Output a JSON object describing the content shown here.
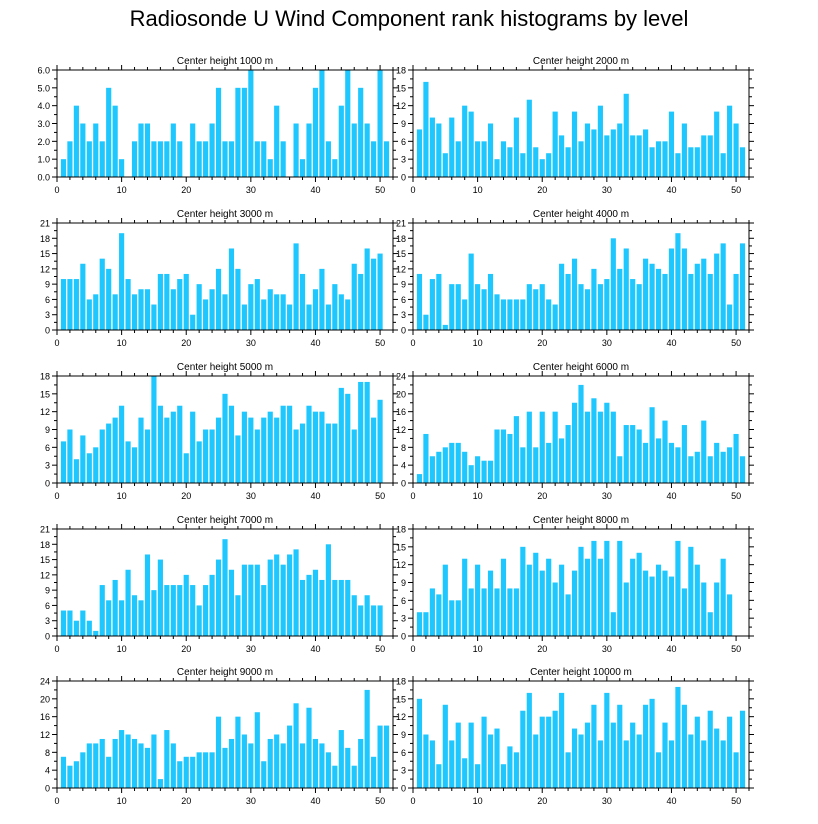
{
  "title": "Radiosonde U Wind Component rank histograms by level",
  "colors": {
    "bar": "#1ec8ff",
    "axis": "#000000",
    "background": "#ffffff"
  },
  "chart_data": [
    {
      "type": "bar",
      "title": "Center height 1000 m",
      "xlim": [
        0,
        52
      ],
      "ylim": [
        0,
        6
      ],
      "yticks": [
        0,
        1,
        2,
        3,
        4,
        5,
        6
      ],
      "ytick_labels": [
        "0.0",
        "1.0",
        "2.0",
        "3.0",
        "4.0",
        "5.0",
        "6.0"
      ],
      "xticks": [
        0,
        10,
        20,
        30,
        40,
        50
      ],
      "values": [
        1,
        2,
        4,
        3,
        2,
        3,
        2,
        5,
        4,
        1,
        0,
        2,
        3,
        3,
        2,
        2,
        2,
        3,
        2,
        0,
        3,
        2,
        2,
        3,
        5,
        2,
        2,
        5,
        5,
        6,
        2,
        2,
        1,
        4,
        2,
        0,
        3,
        1,
        3,
        5,
        6,
        2,
        1,
        4,
        6,
        3,
        5,
        3,
        2,
        6,
        2
      ]
    },
    {
      "type": "bar",
      "title": "Center height 2000 m",
      "xlim": [
        0,
        52
      ],
      "ylim": [
        0,
        18
      ],
      "yticks": [
        0,
        3,
        6,
        9,
        12,
        15,
        18
      ],
      "ytick_labels": [
        "0",
        "3",
        "6",
        "9",
        "12",
        "15",
        "18"
      ],
      "xticks": [
        0,
        10,
        20,
        30,
        40,
        50
      ],
      "values": [
        8,
        16,
        10,
        9,
        4,
        10,
        6,
        12,
        11,
        6,
        6,
        9,
        3,
        6,
        5,
        10,
        4,
        13,
        5,
        3,
        4,
        11,
        7,
        5,
        11,
        6,
        9,
        8,
        12,
        7,
        8,
        9,
        14,
        7,
        7,
        8,
        5,
        6,
        6,
        11,
        4,
        9,
        5,
        5,
        7,
        7,
        11,
        4,
        12,
        9,
        5
      ]
    },
    {
      "type": "bar",
      "title": "Center height 3000 m",
      "xlim": [
        0,
        52
      ],
      "ylim": [
        0,
        21
      ],
      "yticks": [
        0,
        3,
        6,
        9,
        12,
        15,
        18,
        21
      ],
      "ytick_labels": [
        "0",
        "3",
        "6",
        "9",
        "12",
        "15",
        "18",
        "21"
      ],
      "xticks": [
        0,
        10,
        20,
        30,
        40,
        50
      ],
      "values": [
        10,
        10,
        10,
        13,
        6,
        7,
        14,
        12,
        7,
        19,
        10,
        7,
        8,
        8,
        5,
        11,
        11,
        8,
        10,
        11,
        3,
        9,
        6,
        8,
        12,
        7,
        16,
        12,
        5,
        9,
        10,
        6,
        8,
        7,
        7,
        5,
        17,
        11,
        5,
        8,
        12,
        5,
        9,
        7,
        6,
        13,
        11,
        16,
        14,
        15,
        0
      ]
    },
    {
      "type": "bar",
      "title": "Center height 4000 m",
      "xlim": [
        0,
        52
      ],
      "ylim": [
        0,
        21
      ],
      "yticks": [
        0,
        3,
        6,
        9,
        12,
        15,
        18,
        21
      ],
      "ytick_labels": [
        "0",
        "3",
        "6",
        "9",
        "12",
        "15",
        "18",
        "21"
      ],
      "xticks": [
        0,
        10,
        20,
        30,
        40,
        50
      ],
      "values": [
        11,
        3,
        10,
        11,
        1,
        9,
        9,
        6,
        15,
        9,
        8,
        11,
        7,
        6,
        6,
        6,
        6,
        9,
        8,
        9,
        6,
        5,
        13,
        11,
        14,
        9,
        8,
        12,
        9,
        10,
        18,
        12,
        16,
        10,
        9,
        14,
        13,
        12,
        11,
        16,
        19,
        16,
        11,
        13,
        14,
        11,
        15,
        17,
        5,
        11,
        17
      ]
    },
    {
      "type": "bar",
      "title": "Center height 5000 m",
      "xlim": [
        0,
        52
      ],
      "ylim": [
        0,
        18
      ],
      "yticks": [
        0,
        3,
        6,
        9,
        12,
        15,
        18
      ],
      "ytick_labels": [
        "0",
        "3",
        "6",
        "9",
        "12",
        "15",
        "18"
      ],
      "xticks": [
        0,
        10,
        20,
        30,
        40,
        50
      ],
      "values": [
        7,
        9,
        4,
        8,
        5,
        6,
        9,
        10,
        11,
        13,
        7,
        6,
        11,
        9,
        18,
        13,
        11,
        12,
        13,
        5,
        12,
        7,
        9,
        9,
        11,
        15,
        13,
        8,
        12,
        11,
        9,
        11,
        12,
        11,
        13,
        13,
        9,
        10,
        13,
        12,
        12,
        10,
        10,
        16,
        15,
        9,
        17,
        17,
        11,
        14,
        0
      ]
    },
    {
      "type": "bar",
      "title": "Center height 6000 m",
      "xlim": [
        0,
        52
      ],
      "ylim": [
        0,
        24
      ],
      "yticks": [
        0,
        4,
        8,
        12,
        16,
        20,
        24
      ],
      "ytick_labels": [
        "0",
        "4",
        "8",
        "12",
        "16",
        "20",
        "24"
      ],
      "xticks": [
        0,
        10,
        20,
        30,
        40,
        50
      ],
      "values": [
        2,
        11,
        6,
        7,
        8,
        9,
        9,
        7,
        4,
        6,
        5,
        5,
        12,
        12,
        11,
        15,
        8,
        16,
        8,
        16,
        9,
        16,
        10,
        13,
        18,
        22,
        16,
        19,
        16,
        18,
        16,
        6,
        13,
        13,
        12,
        9,
        17,
        10,
        14,
        9,
        8,
        13,
        6,
        7,
        14,
        6,
        9,
        7,
        8,
        11,
        6
      ]
    },
    {
      "type": "bar",
      "title": "Center height 7000 m",
      "xlim": [
        0,
        52
      ],
      "ylim": [
        0,
        21
      ],
      "yticks": [
        0,
        3,
        6,
        9,
        12,
        15,
        18,
        21
      ],
      "ytick_labels": [
        "0",
        "3",
        "6",
        "9",
        "12",
        "15",
        "18",
        "21"
      ],
      "xticks": [
        0,
        10,
        20,
        30,
        40,
        50
      ],
      "values": [
        5,
        5,
        3,
        5,
        3,
        1,
        10,
        7,
        11,
        7,
        13,
        8,
        7,
        16,
        9,
        15,
        10,
        10,
        10,
        12,
        10,
        6,
        10,
        12,
        15,
        19,
        13,
        8,
        14,
        14,
        14,
        10,
        15,
        16,
        14,
        16,
        17,
        11,
        12,
        13,
        11,
        18,
        11,
        11,
        11,
        8,
        6,
        8,
        6,
        6,
        0
      ]
    },
    {
      "type": "bar",
      "title": "Center height 8000 m",
      "xlim": [
        0,
        52
      ],
      "ylim": [
        0,
        18
      ],
      "yticks": [
        0,
        3,
        6,
        9,
        12,
        15,
        18
      ],
      "ytick_labels": [
        "0",
        "3",
        "6",
        "9",
        "12",
        "15",
        "18"
      ],
      "xticks": [
        0,
        10,
        20,
        30,
        40,
        50
      ],
      "values": [
        4,
        4,
        8,
        7,
        12,
        6,
        6,
        13,
        8,
        12,
        8,
        11,
        8,
        13,
        8,
        8,
        15,
        12,
        14,
        11,
        13,
        9,
        12,
        7,
        11,
        15,
        13,
        16,
        13,
        16,
        4,
        16,
        9,
        13,
        14,
        11,
        10,
        12,
        11,
        10,
        16,
        8,
        15,
        12,
        9,
        4,
        9,
        13,
        7,
        0,
        0
      ]
    },
    {
      "type": "bar",
      "title": "Center height 9000 m",
      "xlim": [
        0,
        52
      ],
      "ylim": [
        0,
        24
      ],
      "yticks": [
        0,
        4,
        8,
        12,
        16,
        20,
        24
      ],
      "ytick_labels": [
        "0",
        "4",
        "8",
        "12",
        "16",
        "20",
        "24"
      ],
      "xticks": [
        0,
        10,
        20,
        30,
        40,
        50
      ],
      "values": [
        7,
        5,
        6,
        8,
        10,
        10,
        11,
        7,
        11,
        13,
        12,
        11,
        10,
        9,
        12,
        2,
        13,
        10,
        6,
        7,
        7,
        8,
        8,
        8,
        16,
        9,
        11,
        16,
        12,
        10,
        17,
        6,
        11,
        12,
        10,
        14,
        19,
        10,
        18,
        11,
        10,
        8,
        5,
        13,
        9,
        5,
        11,
        22,
        7,
        14,
        14
      ]
    },
    {
      "type": "bar",
      "title": "Center height 10000 m",
      "xlim": [
        0,
        52
      ],
      "ylim": [
        0,
        18
      ],
      "yticks": [
        0,
        3,
        6,
        9,
        12,
        15,
        18
      ],
      "ytick_labels": [
        "0",
        "3",
        "6",
        "9",
        "12",
        "15",
        "18"
      ],
      "xticks": [
        0,
        10,
        20,
        30,
        40,
        50
      ],
      "values": [
        15,
        9,
        8,
        4,
        14,
        8,
        11,
        5,
        11,
        4,
        12,
        9,
        10,
        4,
        7,
        6,
        13,
        16,
        9,
        12,
        12,
        13,
        16,
        6,
        10,
        9,
        11,
        14,
        8,
        16,
        11,
        14,
        8,
        11,
        9,
        14,
        15,
        6,
        11,
        8,
        17,
        14,
        9,
        12,
        8,
        13,
        10,
        8,
        12,
        6,
        13
      ]
    }
  ]
}
